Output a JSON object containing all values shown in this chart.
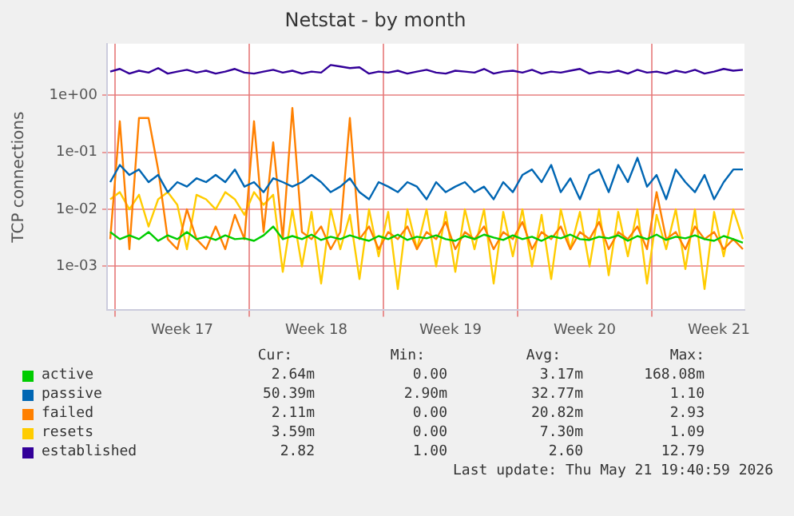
{
  "chart_data": {
    "type": "line",
    "title": "Netstat - by month",
    "ylabel": "TCP connections",
    "log": "y",
    "grid": true,
    "legend": "bottom",
    "ylim": [
      0.00017,
      8
    ],
    "yticks": [
      {
        "value": 0.001,
        "label": "1e-03"
      },
      {
        "value": 0.01,
        "label": "1e-02"
      },
      {
        "value": 0.1,
        "label": "1e-01"
      },
      {
        "value": 1,
        "label": "1e+00"
      }
    ],
    "xlim": [
      "2026-04-19T14:00",
      "2026-05-22T20:00"
    ],
    "xticks": [
      {
        "value": "2026-04-20T00:00",
        "label": null
      },
      {
        "value": "2026-04-23T12:00",
        "label": "Week 17"
      },
      {
        "value": "2026-04-27T00:00",
        "label": null
      },
      {
        "value": "2026-04-30T12:00",
        "label": "Week 18"
      },
      {
        "value": "2026-05-04T00:00",
        "label": null
      },
      {
        "value": "2026-05-07T12:00",
        "label": "Week 19"
      },
      {
        "value": "2026-05-11T00:00",
        "label": null
      },
      {
        "value": "2026-05-14T12:00",
        "label": "Week 20"
      },
      {
        "value": "2026-05-18T00:00",
        "label": null
      },
      {
        "value": "2026-05-21T12:00",
        "label": "Week 21"
      }
    ],
    "x": [
      "2026-04-19T18:00",
      "2026-04-20T06:00",
      "2026-04-20T18:00",
      "2026-04-21T06:00",
      "2026-04-21T18:00",
      "2026-04-22T06:00",
      "2026-04-22T18:00",
      "2026-04-23T06:00",
      "2026-04-23T18:00",
      "2026-04-24T06:00",
      "2026-04-24T18:00",
      "2026-04-25T06:00",
      "2026-04-25T18:00",
      "2026-04-26T06:00",
      "2026-04-26T18:00",
      "2026-04-27T06:00",
      "2026-04-27T18:00",
      "2026-04-28T06:00",
      "2026-04-28T18:00",
      "2026-04-29T06:00",
      "2026-04-29T18:00",
      "2026-04-30T06:00",
      "2026-04-30T18:00",
      "2026-05-01T06:00",
      "2026-05-01T18:00",
      "2026-05-02T06:00",
      "2026-05-02T18:00",
      "2026-05-03T06:00",
      "2026-05-03T18:00",
      "2026-05-04T06:00",
      "2026-05-04T18:00",
      "2026-05-05T06:00",
      "2026-05-05T18:00",
      "2026-05-06T06:00",
      "2026-05-06T18:00",
      "2026-05-07T06:00",
      "2026-05-07T18:00",
      "2026-05-08T06:00",
      "2026-05-08T18:00",
      "2026-05-09T06:00",
      "2026-05-09T18:00",
      "2026-05-10T06:00",
      "2026-05-10T18:00",
      "2026-05-11T06:00",
      "2026-05-11T18:00",
      "2026-05-12T06:00",
      "2026-05-12T18:00",
      "2026-05-13T06:00",
      "2026-05-13T18:00",
      "2026-05-14T06:00",
      "2026-05-14T18:00",
      "2026-05-15T06:00",
      "2026-05-15T18:00",
      "2026-05-16T06:00",
      "2026-05-16T18:00",
      "2026-05-17T06:00",
      "2026-05-17T18:00",
      "2026-05-18T06:00",
      "2026-05-18T18:00",
      "2026-05-19T06:00",
      "2026-05-19T18:00",
      "2026-05-20T06:00",
      "2026-05-20T18:00",
      "2026-05-21T06:00",
      "2026-05-21T18:00",
      "2026-05-22T06:00",
      "2026-05-22T18:00"
    ],
    "series": [
      {
        "name": "active",
        "color": "#00cc00",
        "values": [
          0.004,
          0.003,
          0.0035,
          0.003,
          0.004,
          0.0028,
          0.0035,
          0.003,
          0.004,
          0.003,
          0.0033,
          0.0029,
          0.0035,
          0.003,
          0.0031,
          0.0028,
          0.0035,
          0.005,
          0.003,
          0.0034,
          0.003,
          0.0036,
          0.0029,
          0.0033,
          0.003,
          0.0035,
          0.0031,
          0.0028,
          0.0034,
          0.003,
          0.0036,
          0.0029,
          0.0033,
          0.0031,
          0.0035,
          0.003,
          0.0028,
          0.0034,
          0.003,
          0.0036,
          0.0032,
          0.0029,
          0.0035,
          0.003,
          0.0033,
          0.0028,
          0.0034,
          0.0031,
          0.0036,
          0.003,
          0.0029,
          0.0033,
          0.0031,
          0.0035,
          0.0028,
          0.0034,
          0.003,
          0.0036,
          0.0029,
          0.0033,
          0.0031,
          0.0035,
          0.003,
          0.0028,
          0.0034,
          0.003,
          0.0026
        ]
      },
      {
        "name": "passive",
        "color": "#0066b3",
        "values": [
          0.03,
          0.06,
          0.04,
          0.05,
          0.03,
          0.04,
          0.02,
          0.03,
          0.025,
          0.035,
          0.03,
          0.04,
          0.03,
          0.05,
          0.025,
          0.03,
          0.02,
          0.035,
          0.03,
          0.025,
          0.03,
          0.04,
          0.03,
          0.02,
          0.025,
          0.035,
          0.02,
          0.015,
          0.03,
          0.025,
          0.02,
          0.03,
          0.025,
          0.015,
          0.03,
          0.02,
          0.025,
          0.03,
          0.02,
          0.025,
          0.015,
          0.03,
          0.02,
          0.04,
          0.05,
          0.03,
          0.06,
          0.02,
          0.035,
          0.015,
          0.04,
          0.05,
          0.02,
          0.06,
          0.03,
          0.08,
          0.025,
          0.04,
          0.015,
          0.05,
          0.03,
          0.02,
          0.04,
          0.015,
          0.03,
          0.05,
          0.05
        ]
      },
      {
        "name": "failed",
        "color": "#ff8000",
        "values": [
          0.003,
          0.35,
          0.002,
          0.4,
          0.4,
          0.05,
          0.003,
          0.002,
          0.01,
          0.003,
          0.002,
          0.005,
          0.002,
          0.008,
          0.003,
          0.35,
          0.004,
          0.15,
          0.003,
          0.6,
          0.004,
          0.003,
          0.005,
          0.002,
          0.004,
          0.4,
          0.003,
          0.005,
          0.002,
          0.004,
          0.003,
          0.005,
          0.002,
          0.004,
          0.003,
          0.006,
          0.002,
          0.004,
          0.003,
          0.005,
          0.002,
          0.004,
          0.003,
          0.006,
          0.002,
          0.004,
          0.003,
          0.005,
          0.002,
          0.004,
          0.003,
          0.006,
          0.002,
          0.004,
          0.003,
          0.005,
          0.002,
          0.02,
          0.003,
          0.004,
          0.002,
          0.005,
          0.003,
          0.004,
          0.002,
          0.003,
          0.002
        ]
      },
      {
        "name": "resets",
        "color": "#ffcc00",
        "values": [
          0.015,
          0.02,
          0.01,
          0.018,
          0.005,
          0.015,
          0.02,
          0.012,
          0.002,
          0.018,
          0.015,
          0.01,
          0.02,
          0.015,
          0.008,
          0.02,
          0.012,
          0.018,
          0.0008,
          0.01,
          0.001,
          0.009,
          0.0005,
          0.01,
          0.002,
          0.008,
          0.0006,
          0.01,
          0.0015,
          0.009,
          0.0004,
          0.01,
          0.002,
          0.01,
          0.001,
          0.009,
          0.0008,
          0.01,
          0.002,
          0.01,
          0.0005,
          0.009,
          0.0015,
          0.01,
          0.001,
          0.008,
          0.0006,
          0.01,
          0.002,
          0.009,
          0.001,
          0.01,
          0.0007,
          0.009,
          0.0015,
          0.01,
          0.0005,
          0.008,
          0.002,
          0.01,
          0.0009,
          0.01,
          0.0004,
          0.009,
          0.0015,
          0.01,
          0.003
        ]
      },
      {
        "name": "established",
        "color": "#330099",
        "values": [
          2.6,
          2.9,
          2.4,
          2.7,
          2.5,
          3.0,
          2.4,
          2.6,
          2.8,
          2.5,
          2.7,
          2.4,
          2.6,
          2.9,
          2.5,
          2.4,
          2.6,
          2.8,
          2.5,
          2.7,
          2.4,
          2.6,
          2.5,
          3.4,
          3.2,
          3.0,
          3.1,
          2.4,
          2.6,
          2.5,
          2.7,
          2.4,
          2.6,
          2.8,
          2.5,
          2.4,
          2.7,
          2.6,
          2.5,
          2.9,
          2.4,
          2.6,
          2.7,
          2.5,
          2.8,
          2.4,
          2.6,
          2.5,
          2.7,
          2.9,
          2.4,
          2.6,
          2.5,
          2.7,
          2.4,
          2.8,
          2.5,
          2.6,
          2.4,
          2.7,
          2.5,
          2.8,
          2.4,
          2.6,
          2.9,
          2.7,
          2.8
        ]
      }
    ],
    "annotations": [
      "Cur:",
      "Min:",
      "Avg:",
      "Max:",
      "2.64m",
      "0.00",
      "3.17m",
      "168.08m",
      "50.39m",
      "2.90m",
      "32.77m",
      "1.10",
      "2.11m",
      "0.00",
      "20.82m",
      "2.93",
      "3.59m",
      "0.00",
      "7.30m",
      "1.09",
      "2.82",
      "1.00",
      "2.60",
      "12.79",
      "Last update: Thu May 21 19:40:59 2026"
    ]
  }
}
